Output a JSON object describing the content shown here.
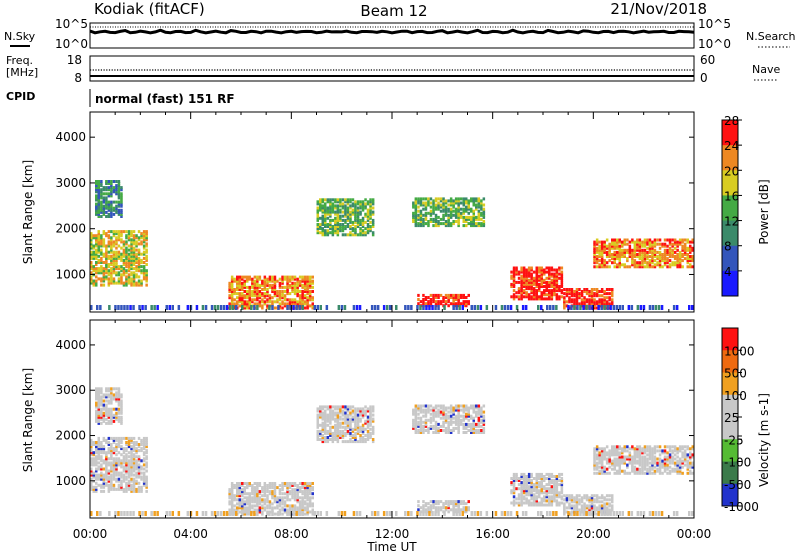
{
  "header": {
    "title_left": "Kodiak (fitACF)",
    "title_center": "Beam 12",
    "title_right": "21/Nov/2018"
  },
  "side_labels": {
    "nsky": "N.Sky",
    "nsearch": "N.Search",
    "freq": "Freq.",
    "freq_unit": "[MHz]",
    "nave": "Nave",
    "cpid": "CPID"
  },
  "cpid_text": "normal (fast) 151 RF",
  "noise_panel": {
    "left_ticks": [
      "10^5",
      "10^0"
    ],
    "right_ticks": [
      "10^5",
      "10^0"
    ]
  },
  "freq_panel": {
    "left_ticks": [
      "18",
      "8"
    ],
    "right_ticks": [
      "60",
      "0"
    ]
  },
  "chart_data": [
    {
      "type": "heatmap",
      "title": "Power",
      "ylabel": "Slant Range [km]",
      "xlabel": "Time UT",
      "xticks": [
        "00:00",
        "04:00",
        "08:00",
        "12:00",
        "16:00",
        "20:00",
        "00:00"
      ],
      "xlim_hours": [
        0,
        24
      ],
      "yticks": [
        1000,
        2000,
        3000,
        4000
      ],
      "ylim": [
        180,
        4550
      ],
      "colorbar": {
        "label": "Power [dB]",
        "ticks": [
          4,
          8,
          12,
          16,
          20,
          24,
          28
        ],
        "colors": [
          "#1a1aff",
          "#3355bb",
          "#3a8a6a",
          "#44aa44",
          "#d8cc22",
          "#ee8822",
          "#ff1111"
        ]
      },
      "echo_regions": [
        {
          "t0": 0.0,
          "t1": 2.3,
          "r0": 800,
          "r1": 2000,
          "power_db": 20
        },
        {
          "t0": 0.2,
          "t1": 1.3,
          "r0": 2300,
          "r1": 3100,
          "power_db": 12
        },
        {
          "t0": 5.5,
          "t1": 8.8,
          "r0": 300,
          "r1": 1000,
          "power_db": 24
        },
        {
          "t0": 9.0,
          "t1": 11.2,
          "r0": 1900,
          "r1": 2700,
          "power_db": 16
        },
        {
          "t0": 13.0,
          "t1": 15.0,
          "r0": 350,
          "r1": 600,
          "power_db": 28
        },
        {
          "t0": 16.7,
          "t1": 18.8,
          "r0": 500,
          "r1": 1200,
          "power_db": 28
        },
        {
          "t0": 18.8,
          "t1": 20.8,
          "r0": 300,
          "r1": 750,
          "power_db": 28
        },
        {
          "t0": 20.0,
          "t1": 24.0,
          "r0": 1200,
          "r1": 1800,
          "power_db": 24
        },
        {
          "t0": 12.8,
          "t1": 15.6,
          "r0": 2100,
          "r1": 2700,
          "power_db": 16
        }
      ]
    },
    {
      "type": "heatmap",
      "title": "Velocity",
      "ylabel": "Slant Range [km]",
      "xlabel": "Time UT",
      "xticks": [
        "00:00",
        "04:00",
        "08:00",
        "12:00",
        "16:00",
        "20:00",
        "00:00"
      ],
      "xlim_hours": [
        0,
        24
      ],
      "yticks": [
        1000,
        2000,
        3000,
        4000
      ],
      "ylim": [
        180,
        4550
      ],
      "colorbar": {
        "label": "Velocity [m s-1]",
        "ticks": [
          1000,
          500,
          100,
          25,
          -25,
          -100,
          -500,
          -1000
        ],
        "colors": [
          "#2233cc",
          "#3a7a4a",
          "#55bb33",
          "#c8c8c8",
          "#c8c8c8",
          "#f0a020",
          "#ee6a10",
          "#ff1111"
        ]
      },
      "dominant_velocity": "-25 to 25 (ground scatter, grey)"
    }
  ]
}
